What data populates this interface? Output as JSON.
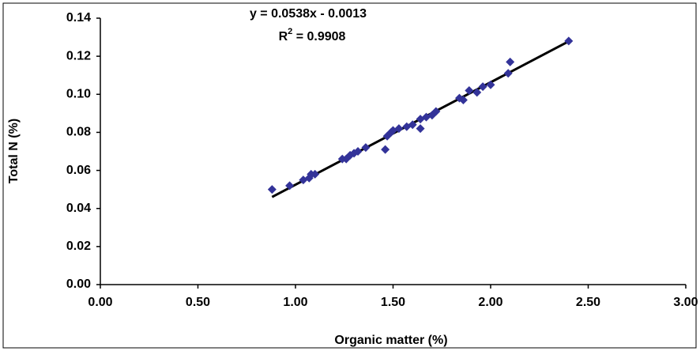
{
  "chart_data": {
    "type": "scatter",
    "xlabel": "Organic matter (%)",
    "ylabel": "Total N (%)",
    "xlim": [
      0,
      3
    ],
    "ylim": [
      0,
      0.14
    ],
    "xticks": [
      {
        "value": 0,
        "label": "0.00"
      },
      {
        "value": 0.5,
        "label": "0.50"
      },
      {
        "value": 1,
        "label": "1.00"
      },
      {
        "value": 1.5,
        "label": "1.50"
      },
      {
        "value": 2,
        "label": "2.00"
      },
      {
        "value": 2.5,
        "label": "2.50"
      },
      {
        "value": 3,
        "label": "3.00"
      }
    ],
    "yticks": [
      {
        "value": 0,
        "label": "0.00"
      },
      {
        "value": 0.02,
        "label": "0.02"
      },
      {
        "value": 0.04,
        "label": "0.04"
      },
      {
        "value": 0.06,
        "label": "0.06"
      },
      {
        "value": 0.08,
        "label": "0.08"
      },
      {
        "value": 0.1,
        "label": "0.10"
      },
      {
        "value": 0.12,
        "label": "0.12"
      },
      {
        "value": 0.14,
        "label": "0.14"
      }
    ],
    "color": "#333399",
    "x": [
      0.88,
      0.97,
      1.04,
      1.07,
      1.08,
      1.1,
      1.24,
      1.26,
      1.28,
      1.3,
      1.32,
      1.36,
      1.46,
      1.47,
      1.49,
      1.5,
      1.53,
      1.57,
      1.6,
      1.64,
      1.64,
      1.67,
      1.7,
      1.72,
      1.84,
      1.86,
      1.89,
      1.93,
      1.96,
      2.0,
      2.09,
      2.1,
      2.4
    ],
    "values": [
      0.05,
      0.052,
      0.055,
      0.056,
      0.058,
      0.058,
      0.066,
      0.066,
      0.068,
      0.069,
      0.07,
      0.072,
      0.071,
      0.078,
      0.08,
      0.081,
      0.082,
      0.083,
      0.084,
      0.087,
      0.082,
      0.088,
      0.089,
      0.091,
      0.098,
      0.097,
      0.102,
      0.101,
      0.104,
      0.105,
      0.111,
      0.117,
      0.128
    ],
    "trendline": {
      "equation": "y = 0.0538x - 0.0013",
      "slope": 0.0538,
      "intercept": -0.0013,
      "color": "#000000",
      "r2_base": "R",
      "r2_sup": "2",
      "r2_rest": " = 0.9908"
    }
  }
}
